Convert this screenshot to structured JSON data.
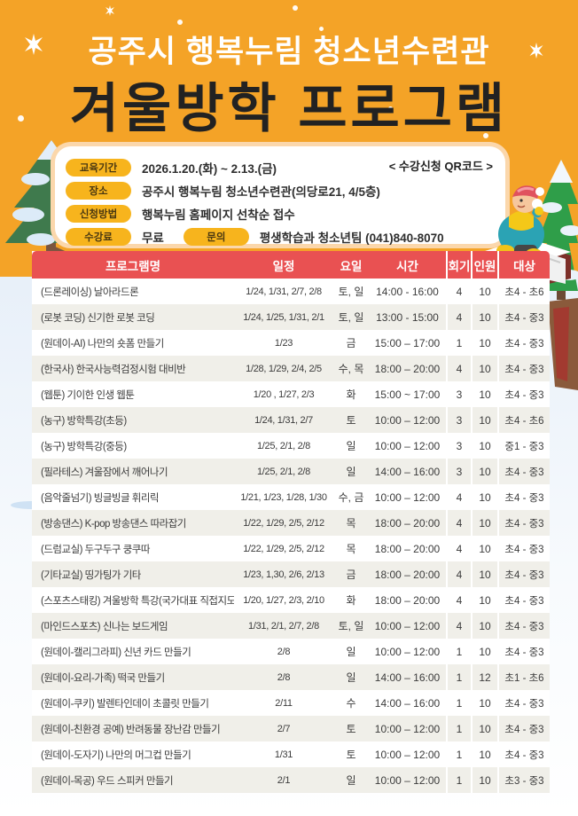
{
  "header": {
    "subtitle": "공주시 행복누림 청소년수련관",
    "title": "겨울방학 프로그램"
  },
  "info": {
    "education_period_label": "교육기간",
    "education_period": "2026.1.20.(화) ~ 2.13.(금)",
    "qr_note": "< 수강신청 QR코드 >",
    "place_label": "장소",
    "place": "공주시 행복누림 청소년수련관(의당로21, 4/5층)",
    "apply_label": "신청방법",
    "apply": "행복누림 홈페이지 선착순 접수",
    "fee_label": "수강료",
    "fee": "무료",
    "contact_label": "문의",
    "contact": "평생학습과 청소년팀 (041)840-8070"
  },
  "table": {
    "headers": [
      "프로그램명",
      "일정",
      "요일",
      "시간",
      "회기",
      "인원",
      "대상"
    ],
    "rows": [
      [
        "(드론레이싱) 날아라드론",
        "1/24, 1/31, 2/7, 2/8",
        "토, 일",
        "14:00 - 16:00",
        "4",
        "10",
        "초4 - 초6"
      ],
      [
        "(로봇 코딩) 신기한 로봇 코딩",
        "1/24, 1/25, 1/31, 2/1",
        "토, 일",
        "13:00 - 15:00",
        "4",
        "10",
        "초4 - 중3"
      ],
      [
        "(원데이-AI) 나만의 숏폼 만들기",
        "1/23",
        "금",
        "15:00 – 17:00",
        "1",
        "10",
        "초4 - 중3"
      ],
      [
        "(한국사) 한국사능력검정시험 대비반",
        "1/28, 1/29, 2/4, 2/5",
        "수, 목",
        "18:00 – 20:00",
        "4",
        "10",
        "초4 - 중3"
      ],
      [
        "(웹툰) 기이한 인생 웹툰",
        "1/20 , 1/27, 2/3",
        "화",
        "15:00 ~ 17:00",
        "3",
        "10",
        "초4 - 중3"
      ],
      [
        "(농구) 방학특강(초등)",
        "1/24, 1/31, 2/7",
        "토",
        "10:00 – 12:00",
        "3",
        "10",
        "초4 - 초6"
      ],
      [
        "(농구) 방학특강(중등)",
        "1/25, 2/1, 2/8",
        "일",
        "10:00 – 12:00",
        "3",
        "10",
        "중1 - 중3"
      ],
      [
        "(필라테스) 겨울잠에서 깨어나기",
        "1/25, 2/1, 2/8",
        "일",
        "14:00 – 16:00",
        "3",
        "10",
        "초4 - 중3"
      ],
      [
        "(음악줄넘기) 빙글빙글 휘리릭",
        "1/21, 1/23, 1/28, 1/30",
        "수, 금",
        "10:00 – 12:00",
        "4",
        "10",
        "초4 - 중3"
      ],
      [
        "(방송댄스) K-pop 방송댄스 따라잡기",
        "1/22, 1/29, 2/5, 2/12",
        "목",
        "18:00 – 20:00",
        "4",
        "10",
        "초4 - 중3"
      ],
      [
        "(드럼교실) 두구두구 쿵쿠따",
        "1/22, 1/29, 2/5, 2/12",
        "목",
        "18:00 – 20:00",
        "4",
        "10",
        "초4 - 중3"
      ],
      [
        "(기타교실) 띵가팅가 기타",
        "1/23, 1,30, 2/6, 2/13",
        "금",
        "18:00 – 20:00",
        "4",
        "10",
        "초4 - 중3"
      ],
      [
        "(스포츠스태킹) 겨울방학 특강(국가대표 직접지도)",
        "1/20, 1/27, 2/3, 2/10",
        "화",
        "18:00 – 20:00",
        "4",
        "10",
        "초4 - 중3"
      ],
      [
        "(마인드스포츠) 신나는 보드게임",
        "1/31, 2/1, 2/7, 2/8",
        "토, 일",
        "10:00 – 12:00",
        "4",
        "10",
        "초4 - 중3"
      ],
      [
        "(원데이-캘리그라피) 신년 카드 만들기",
        "2/8",
        "일",
        "10:00 – 12:00",
        "1",
        "10",
        "초4 - 중3"
      ],
      [
        "(원데이-요리-가족) 떡국 만들기",
        "2/8",
        "일",
        "14:00 – 16:00",
        "1",
        "12",
        "초1 - 초6"
      ],
      [
        "(원데이-쿠키) 발렌타인데이 초콜릿 만들기",
        "2/11",
        "수",
        "14:00 – 16:00",
        "1",
        "10",
        "초4 - 중3"
      ],
      [
        "(원데이-친환경 공예) 반려동물 장난감 만들기",
        "2/7",
        "토",
        "10:00 – 12:00",
        "1",
        "10",
        "초4 - 중3"
      ],
      [
        "(원데이-도자기) 나만의 머그컵 만들기",
        "1/31",
        "토",
        "10:00 – 12:00",
        "1",
        "10",
        "초4 - 중3"
      ],
      [
        "(원데이-목공) 우드 스피커 만들기",
        "2/1",
        "일",
        "10:00 – 12:00",
        "1",
        "10",
        "초3 - 중3"
      ]
    ]
  },
  "colors": {
    "orange": "#F4A327",
    "header_red": "#E95152",
    "pill_yellow": "#F7B41D",
    "alt_row": "#F0EFE9"
  }
}
